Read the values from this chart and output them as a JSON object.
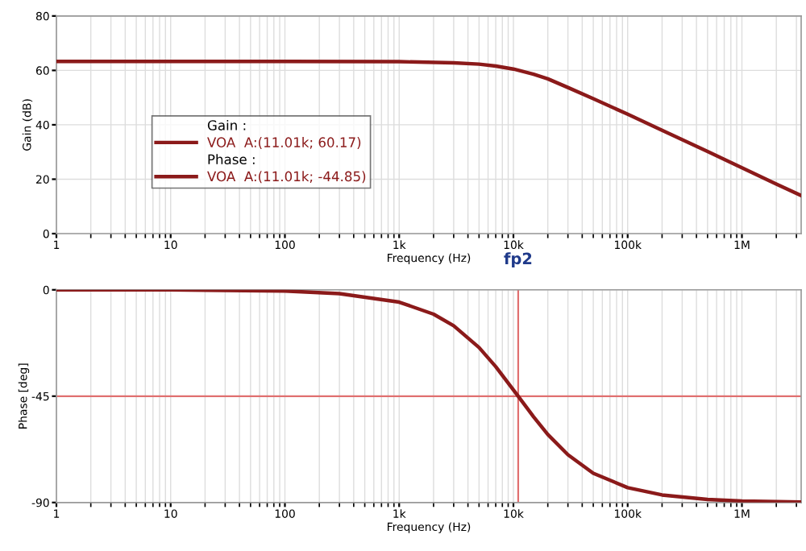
{
  "chart_data": [
    {
      "type": "line",
      "xlabel": "Frequency (Hz)",
      "ylabel": "Gain (dB)",
      "legend_title": "Gain :",
      "legend": "center",
      "grid": true,
      "log": "x",
      "marker": "none",
      "line_style": "solid",
      "xlim": [
        1,
        3300000
      ],
      "ylim": [
        0,
        80
      ],
      "xticks": [
        1,
        10,
        100,
        {
          "value": 1000,
          "label": "1k"
        },
        {
          "value": 10000,
          "label": "10k"
        },
        {
          "value": 100000,
          "label": "100k"
        },
        {
          "value": 1000000,
          "label": "1M"
        }
      ],
      "yticks": [
        0,
        20,
        40,
        60,
        80
      ],
      "series": [
        {
          "name": "VOA  A:(11.01k; 60.17)",
          "color": "#8b1a1a",
          "x": [
            1,
            10,
            100,
            1000,
            3000,
            5000,
            7000,
            10000,
            15000,
            20000,
            30000,
            50000,
            100000,
            200000,
            500000,
            1000000,
            2000000,
            3300000
          ],
          "values": [
            63.3,
            63.3,
            63.3,
            63.2,
            62.8,
            62.3,
            61.6,
            60.5,
            58.6,
            56.9,
            53.7,
            49.6,
            43.9,
            38.0,
            30.2,
            24.2,
            18.2,
            14.0
          ]
        }
      ]
    },
    {
      "type": "line",
      "xlabel": "Frequency (Hz)",
      "ylabel": "Phase [deg]",
      "legend_title": "Phase :",
      "grid": true,
      "log": "x",
      "marker": "none",
      "line_style": "solid",
      "xlim": [
        1,
        3300000
      ],
      "ylim": [
        -90,
        0
      ],
      "xticks": [
        1,
        10,
        100,
        {
          "value": 1000,
          "label": "1k"
        },
        {
          "value": 10000,
          "label": "10k"
        },
        {
          "value": 100000,
          "label": "100k"
        },
        {
          "value": 1000000,
          "label": "1M"
        }
      ],
      "yticks": [
        -90,
        -45,
        0
      ],
      "ref_lines": [
        {
          "axis": "x",
          "value": 11010,
          "label": "fp2",
          "color": "#e07070"
        },
        {
          "axis": "y",
          "value": -45,
          "color": "#e07070"
        }
      ],
      "series": [
        {
          "name": "VOA  A:(11.01k; -44.85)",
          "color": "#8b1a1a",
          "x": [
            1,
            10,
            100,
            300,
            1000,
            2000,
            3000,
            5000,
            7000,
            11010,
            15000,
            20000,
            30000,
            50000,
            100000,
            200000,
            500000,
            1000000,
            3300000
          ],
          "values": [
            0,
            0,
            -0.5,
            -1.6,
            -5.2,
            -10.3,
            -15.2,
            -24.4,
            -32.5,
            -45,
            -53.7,
            -61.2,
            -69.8,
            -77.6,
            -83.7,
            -86.8,
            -88.7,
            -89.4,
            -89.8
          ]
        }
      ]
    }
  ]
}
